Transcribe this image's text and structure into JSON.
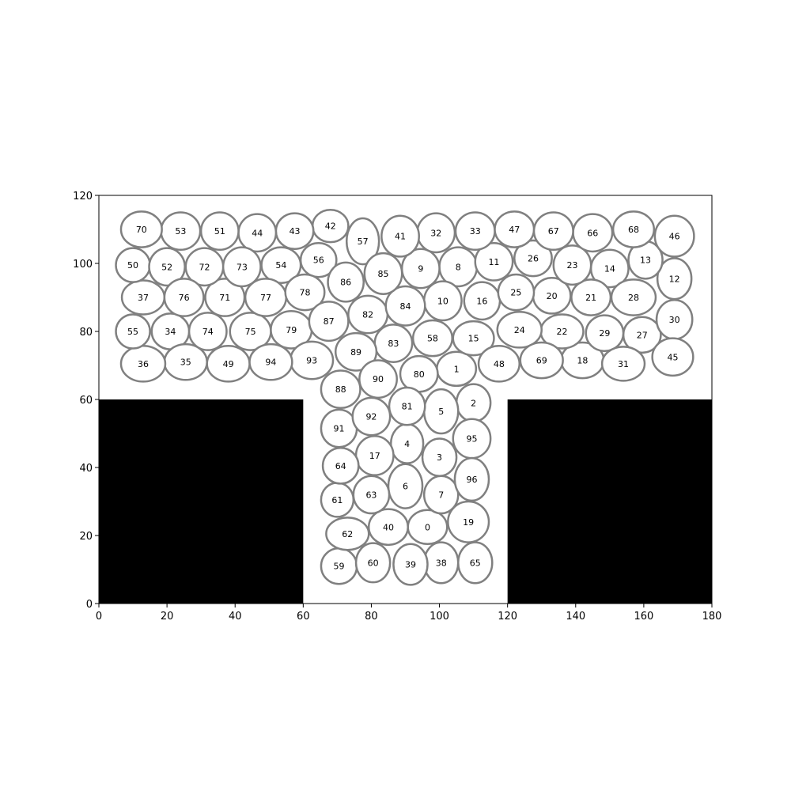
{
  "chart_data": {
    "type": "scatter",
    "title": "",
    "xlabel": "",
    "ylabel": "",
    "xlim": [
      0,
      180
    ],
    "ylim": [
      0,
      120
    ],
    "xticks": [
      0,
      20,
      40,
      60,
      80,
      100,
      120,
      140,
      160,
      180
    ],
    "yticks": [
      0,
      20,
      40,
      60,
      80,
      100,
      120
    ],
    "grid": false,
    "obstacles": [
      {
        "x0": 0,
        "x1": 60,
        "y0": 0,
        "y1": 60,
        "color": "#000000"
      },
      {
        "x0": 120,
        "x1": 180,
        "y0": 0,
        "y1": 60,
        "color": "#000000"
      }
    ],
    "ellipse_style": {
      "fill": "#ffffff",
      "edge_color": "#808080"
    },
    "ellipses": [
      {
        "label": "0",
        "x": 96.5,
        "y": 22.5,
        "w": 11.5,
        "h": 10,
        "angle": 0
      },
      {
        "label": "1",
        "x": 105,
        "y": 69,
        "w": 11.5,
        "h": 10,
        "angle": 0
      },
      {
        "label": "2",
        "x": 110,
        "y": 59,
        "w": 10,
        "h": 11,
        "angle": 0
      },
      {
        "label": "3",
        "x": 100,
        "y": 43,
        "w": 10,
        "h": 11,
        "angle": 0
      },
      {
        "label": "4",
        "x": 90.5,
        "y": 47,
        "w": 9.5,
        "h": 11.5,
        "angle": 0
      },
      {
        "label": "5",
        "x": 100.5,
        "y": 56.5,
        "w": 10,
        "h": 13,
        "angle": 0
      },
      {
        "label": "6",
        "x": 90,
        "y": 34.5,
        "w": 10,
        "h": 13,
        "angle": 0
      },
      {
        "label": "7",
        "x": 100.5,
        "y": 32,
        "w": 10,
        "h": 11,
        "angle": 0
      },
      {
        "label": "8",
        "x": 105.5,
        "y": 99,
        "w": 11,
        "h": 11.5,
        "angle": 0
      },
      {
        "label": "9",
        "x": 94.5,
        "y": 98.5,
        "w": 11,
        "h": 11.5,
        "angle": 0
      },
      {
        "label": "10",
        "x": 101,
        "y": 89,
        "w": 11,
        "h": 11.5,
        "angle": 0
      },
      {
        "label": "11",
        "x": 116,
        "y": 100.5,
        "w": 11,
        "h": 11,
        "angle": 0
      },
      {
        "label": "12",
        "x": 169,
        "y": 95.5,
        "w": 10,
        "h": 12,
        "angle": 0
      },
      {
        "label": "13",
        "x": 160.5,
        "y": 101,
        "w": 10,
        "h": 11,
        "angle": 0
      },
      {
        "label": "14",
        "x": 150,
        "y": 98.5,
        "w": 11,
        "h": 11,
        "angle": 0
      },
      {
        "label": "15",
        "x": 110,
        "y": 78,
        "w": 12,
        "h": 10,
        "angle": 0
      },
      {
        "label": "16",
        "x": 112.5,
        "y": 89,
        "w": 10.5,
        "h": 11,
        "angle": 0
      },
      {
        "label": "17",
        "x": 81,
        "y": 43.5,
        "w": 11,
        "h": 11.5,
        "angle": 0
      },
      {
        "label": "18",
        "x": 142,
        "y": 71.5,
        "w": 12.5,
        "h": 10.5,
        "angle": 0
      },
      {
        "label": "19",
        "x": 108.5,
        "y": 24,
        "w": 12,
        "h": 12,
        "angle": 0
      },
      {
        "label": "20",
        "x": 133,
        "y": 90.5,
        "w": 11,
        "h": 10.5,
        "angle": 0
      },
      {
        "label": "21",
        "x": 144.5,
        "y": 90,
        "w": 11.5,
        "h": 10.5,
        "angle": 0
      },
      {
        "label": "22",
        "x": 136,
        "y": 80,
        "w": 12.5,
        "h": 10,
        "angle": 0
      },
      {
        "label": "23",
        "x": 139,
        "y": 99.5,
        "w": 11,
        "h": 11.5,
        "angle": 0
      },
      {
        "label": "24",
        "x": 123.5,
        "y": 80.5,
        "w": 13,
        "h": 10.5,
        "angle": 0
      },
      {
        "label": "25",
        "x": 122.5,
        "y": 91.5,
        "w": 10.5,
        "h": 10.5,
        "angle": 0
      },
      {
        "label": "26",
        "x": 127.5,
        "y": 101.5,
        "w": 11,
        "h": 10.5,
        "angle": 0
      },
      {
        "label": "27",
        "x": 159.5,
        "y": 79,
        "w": 11,
        "h": 10.5,
        "angle": 0
      },
      {
        "label": "28",
        "x": 157,
        "y": 90,
        "w": 13,
        "h": 10.5,
        "angle": 0
      },
      {
        "label": "29",
        "x": 148.5,
        "y": 79.5,
        "w": 11,
        "h": 10.5,
        "angle": 0
      },
      {
        "label": "30",
        "x": 169,
        "y": 83.5,
        "w": 10.5,
        "h": 11.5,
        "angle": 0
      },
      {
        "label": "31",
        "x": 154,
        "y": 70.5,
        "w": 12.5,
        "h": 10,
        "angle": 0
      },
      {
        "label": "32",
        "x": 99,
        "y": 109,
        "w": 11,
        "h": 11.5,
        "angle": 0
      },
      {
        "label": "33",
        "x": 110.5,
        "y": 109.5,
        "w": 11.5,
        "h": 11,
        "angle": 0
      },
      {
        "label": "34",
        "x": 21,
        "y": 80,
        "w": 11,
        "h": 10.5,
        "angle": 0
      },
      {
        "label": "35",
        "x": 25.5,
        "y": 71,
        "w": 12.5,
        "h": 10.5,
        "angle": 0
      },
      {
        "label": "36",
        "x": 13,
        "y": 70.5,
        "w": 13,
        "h": 10.5,
        "angle": 0
      },
      {
        "label": "37",
        "x": 13,
        "y": 90,
        "w": 12.5,
        "h": 10,
        "angle": 0
      },
      {
        "label": "38",
        "x": 100.5,
        "y": 12,
        "w": 10,
        "h": 12,
        "angle": 0
      },
      {
        "label": "39",
        "x": 91.5,
        "y": 11.5,
        "w": 10,
        "h": 12,
        "angle": 0
      },
      {
        "label": "40",
        "x": 85,
        "y": 22.5,
        "w": 11.5,
        "h": 10.5,
        "angle": 0
      },
      {
        "label": "41",
        "x": 88.5,
        "y": 108,
        "w": 11,
        "h": 12,
        "angle": 0
      },
      {
        "label": "42",
        "x": 68,
        "y": 111,
        "w": 10.5,
        "h": 9.5,
        "angle": 0
      },
      {
        "label": "43",
        "x": 57.5,
        "y": 109.5,
        "w": 11,
        "h": 10.5,
        "angle": 0
      },
      {
        "label": "44",
        "x": 46.5,
        "y": 109,
        "w": 11,
        "h": 11,
        "angle": 0
      },
      {
        "label": "45",
        "x": 168.5,
        "y": 72.5,
        "w": 12,
        "h": 11,
        "angle": 0
      },
      {
        "label": "46",
        "x": 169,
        "y": 108,
        "w": 11.5,
        "h": 12,
        "angle": 0
      },
      {
        "label": "47",
        "x": 122,
        "y": 110,
        "w": 11.5,
        "h": 10.5,
        "angle": 0
      },
      {
        "label": "48",
        "x": 117.5,
        "y": 70.5,
        "w": 12,
        "h": 10.5,
        "angle": 0
      },
      {
        "label": "49",
        "x": 38,
        "y": 70.5,
        "w": 12.5,
        "h": 10.5,
        "angle": 0
      },
      {
        "label": "50",
        "x": 10,
        "y": 99.5,
        "w": 10,
        "h": 10,
        "angle": 0
      },
      {
        "label": "51",
        "x": 35.5,
        "y": 109.5,
        "w": 11,
        "h": 11,
        "angle": 0
      },
      {
        "label": "52",
        "x": 20,
        "y": 99,
        "w": 10.5,
        "h": 11,
        "angle": 0
      },
      {
        "label": "53",
        "x": 24,
        "y": 109.5,
        "w": 11.5,
        "h": 11,
        "angle": 0
      },
      {
        "label": "54",
        "x": 53.5,
        "y": 99.5,
        "w": 11.5,
        "h": 10.5,
        "angle": 0
      },
      {
        "label": "55",
        "x": 10,
        "y": 80,
        "w": 10,
        "h": 10,
        "angle": 0
      },
      {
        "label": "56",
        "x": 64.5,
        "y": 101,
        "w": 10.5,
        "h": 10,
        "angle": 0
      },
      {
        "label": "57",
        "x": 77.5,
        "y": 106.5,
        "w": 9.5,
        "h": 13.5,
        "angle": 0
      },
      {
        "label": "58",
        "x": 98,
        "y": 78,
        "w": 11.5,
        "h": 10.5,
        "angle": 0
      },
      {
        "label": "59",
        "x": 70.5,
        "y": 11,
        "w": 10.5,
        "h": 10.5,
        "angle": 0
      },
      {
        "label": "60",
        "x": 80.5,
        "y": 12,
        "w": 10,
        "h": 11.5,
        "angle": 0
      },
      {
        "label": "61",
        "x": 70,
        "y": 30.5,
        "w": 9.5,
        "h": 10,
        "angle": 0
      },
      {
        "label": "62",
        "x": 73,
        "y": 20.5,
        "w": 12.5,
        "h": 9.5,
        "angle": 0
      },
      {
        "label": "63",
        "x": 80,
        "y": 32,
        "w": 10.5,
        "h": 11,
        "angle": 0
      },
      {
        "label": "64",
        "x": 71,
        "y": 40.5,
        "w": 10.5,
        "h": 10.5,
        "angle": 0
      },
      {
        "label": "65",
        "x": 110.5,
        "y": 12,
        "w": 10,
        "h": 12,
        "angle": 0
      },
      {
        "label": "66",
        "x": 145,
        "y": 109,
        "w": 11.5,
        "h": 11,
        "angle": 0
      },
      {
        "label": "67",
        "x": 133.5,
        "y": 109.5,
        "w": 11.5,
        "h": 11,
        "angle": 0
      },
      {
        "label": "68",
        "x": 157,
        "y": 110,
        "w": 12,
        "h": 10.5,
        "angle": 0
      },
      {
        "label": "69",
        "x": 130,
        "y": 71.5,
        "w": 12.5,
        "h": 10.5,
        "angle": 0
      },
      {
        "label": "70",
        "x": 12.5,
        "y": 110,
        "w": 12,
        "h": 10.5,
        "angle": 0
      },
      {
        "label": "71",
        "x": 37,
        "y": 90,
        "w": 11.5,
        "h": 11,
        "angle": 0
      },
      {
        "label": "72",
        "x": 31,
        "y": 99,
        "w": 11,
        "h": 11,
        "angle": 0
      },
      {
        "label": "73",
        "x": 42,
        "y": 99,
        "w": 11,
        "h": 11.5,
        "angle": 0
      },
      {
        "label": "74",
        "x": 32,
        "y": 80,
        "w": 11,
        "h": 11,
        "angle": 0
      },
      {
        "label": "75",
        "x": 44.5,
        "y": 80,
        "w": 12,
        "h": 11,
        "angle": 0
      },
      {
        "label": "76",
        "x": 25,
        "y": 90,
        "w": 11.5,
        "h": 11,
        "angle": 0
      },
      {
        "label": "77",
        "x": 49,
        "y": 90,
        "w": 12,
        "h": 11,
        "angle": 0
      },
      {
        "label": "78",
        "x": 60.5,
        "y": 91.5,
        "w": 11.5,
        "h": 10.5,
        "angle": 0
      },
      {
        "label": "79",
        "x": 56.5,
        "y": 80.5,
        "w": 12,
        "h": 11,
        "angle": 0
      },
      {
        "label": "80",
        "x": 94,
        "y": 67.5,
        "w": 11,
        "h": 10.5,
        "angle": 0
      },
      {
        "label": "81",
        "x": 90.5,
        "y": 58,
        "w": 10.5,
        "h": 11,
        "angle": 0
      },
      {
        "label": "82",
        "x": 79,
        "y": 85,
        "w": 11.5,
        "h": 11,
        "angle": 0
      },
      {
        "label": "83",
        "x": 86.5,
        "y": 76.5,
        "w": 11,
        "h": 11,
        "angle": 0
      },
      {
        "label": "84",
        "x": 90,
        "y": 87.5,
        "w": 11.5,
        "h": 11.5,
        "angle": 0
      },
      {
        "label": "85",
        "x": 83.5,
        "y": 97,
        "w": 11,
        "h": 12,
        "angle": 0
      },
      {
        "label": "86",
        "x": 72.5,
        "y": 94.5,
        "w": 10.5,
        "h": 11.5,
        "angle": 0
      },
      {
        "label": "87",
        "x": 67.5,
        "y": 83,
        "w": 11.5,
        "h": 11.5,
        "angle": 0
      },
      {
        "label": "88",
        "x": 71,
        "y": 63,
        "w": 11.5,
        "h": 11,
        "angle": 0
      },
      {
        "label": "89",
        "x": 75.5,
        "y": 74,
        "w": 12,
        "h": 11,
        "angle": 0
      },
      {
        "label": "90",
        "x": 82,
        "y": 66,
        "w": 11,
        "h": 11,
        "angle": 0
      },
      {
        "label": "91",
        "x": 70.5,
        "y": 51.5,
        "w": 10.5,
        "h": 11,
        "angle": 0
      },
      {
        "label": "92",
        "x": 80,
        "y": 55,
        "w": 11,
        "h": 11,
        "angle": 0
      },
      {
        "label": "93",
        "x": 62.5,
        "y": 71.5,
        "w": 12.5,
        "h": 11,
        "angle": 0
      },
      {
        "label": "94",
        "x": 50.5,
        "y": 71,
        "w": 12.5,
        "h": 10.5,
        "angle": 0
      },
      {
        "label": "95",
        "x": 109.5,
        "y": 48.5,
        "w": 11,
        "h": 11.5,
        "angle": 0
      },
      {
        "label": "96",
        "x": 109.5,
        "y": 36.5,
        "w": 10,
        "h": 12.5,
        "angle": 0
      }
    ]
  }
}
